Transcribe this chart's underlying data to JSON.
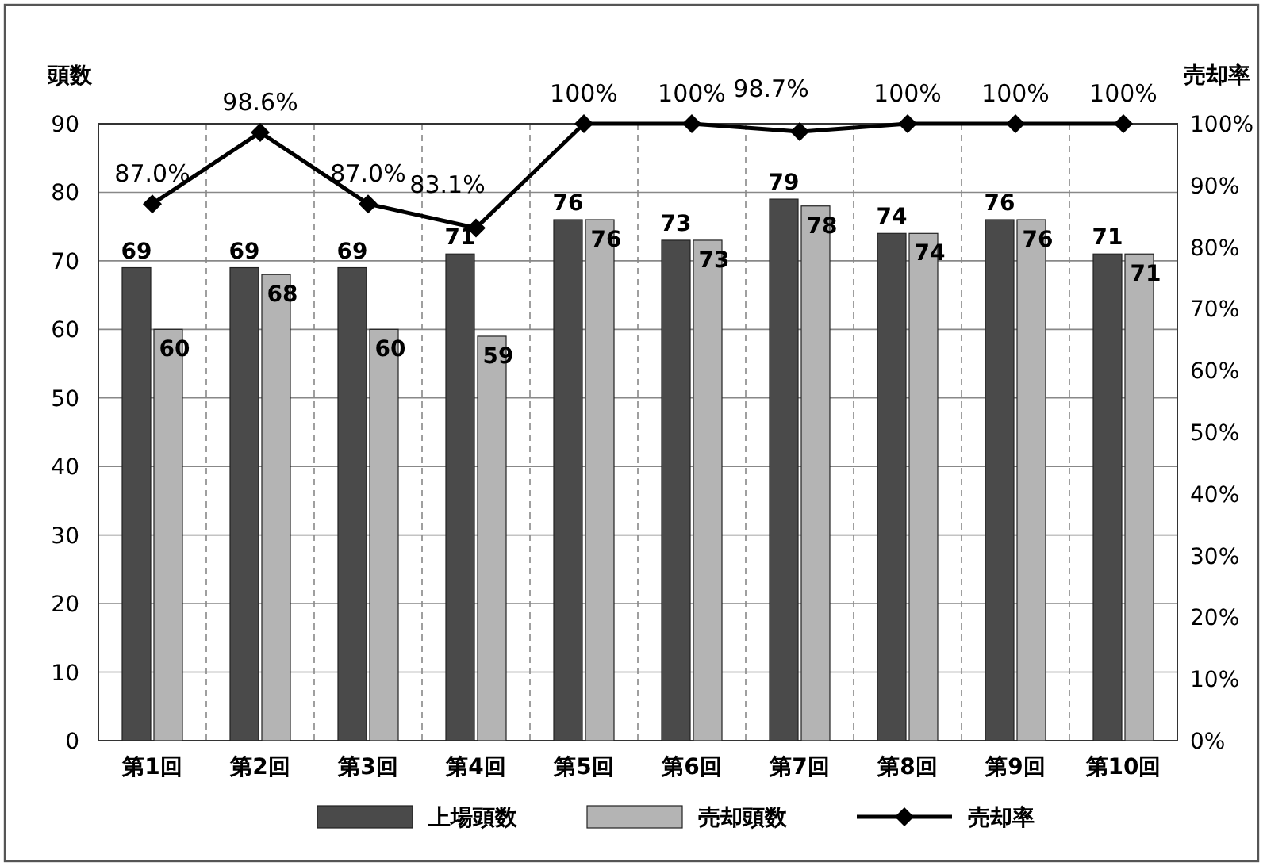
{
  "chart_data": {
    "type": "bar",
    "ylabel": "頭数",
    "y2label": "売却率",
    "categories": [
      "第1回",
      "第2回",
      "第3回",
      "第4回",
      "第5回",
      "第6回",
      "第7回",
      "第8回",
      "第9回",
      "第10回"
    ],
    "series": [
      {
        "name": "上場頭数",
        "color": "#4a4a4a",
        "values": [
          69,
          69,
          69,
          71,
          76,
          73,
          79,
          74,
          76,
          71
        ],
        "value_labels": [
          "69",
          "69",
          "69",
          "71",
          "76",
          "73",
          "79",
          "74",
          "76",
          "71"
        ]
      },
      {
        "name": "売却頭数",
        "color": "#b4b4b4",
        "values": [
          60,
          68,
          60,
          59,
          76,
          73,
          78,
          74,
          76,
          71
        ],
        "value_labels": [
          "60",
          "68",
          "60",
          "59",
          "76",
          "73",
          "78",
          "74",
          "76",
          "71"
        ]
      },
      {
        "name": "売却率",
        "type": "line",
        "axis": "y2",
        "color": "#000000",
        "marker": "diamond",
        "line_style": "solid",
        "values": [
          87.0,
          98.6,
          87.0,
          83.1,
          100,
          100,
          98.7,
          100,
          100,
          100
        ],
        "value_labels": [
          "87.0%",
          "98.6%",
          "87.0%",
          "83.1%",
          "100%",
          "100%",
          "98.7%",
          "100%",
          "100%",
          "100%"
        ]
      }
    ],
    "ylim": [
      0,
      90
    ],
    "yticks": [
      0,
      10,
      20,
      30,
      40,
      50,
      60,
      70,
      80,
      90
    ],
    "y2lim": [
      0,
      100
    ],
    "y2ticks": [
      {
        "value": 0,
        "label": "0%"
      },
      {
        "value": 10,
        "label": "10%"
      },
      {
        "value": 20,
        "label": "20%"
      },
      {
        "value": 30,
        "label": "30%"
      },
      {
        "value": 40,
        "label": "40%"
      },
      {
        "value": 50,
        "label": "50%"
      },
      {
        "value": 60,
        "label": "60%"
      },
      {
        "value": 70,
        "label": "70%"
      },
      {
        "value": 80,
        "label": "80%"
      },
      {
        "value": 90,
        "label": "90%"
      },
      {
        "value": 100,
        "label": "100%"
      }
    ],
    "grid": true,
    "legend": "bottom"
  }
}
